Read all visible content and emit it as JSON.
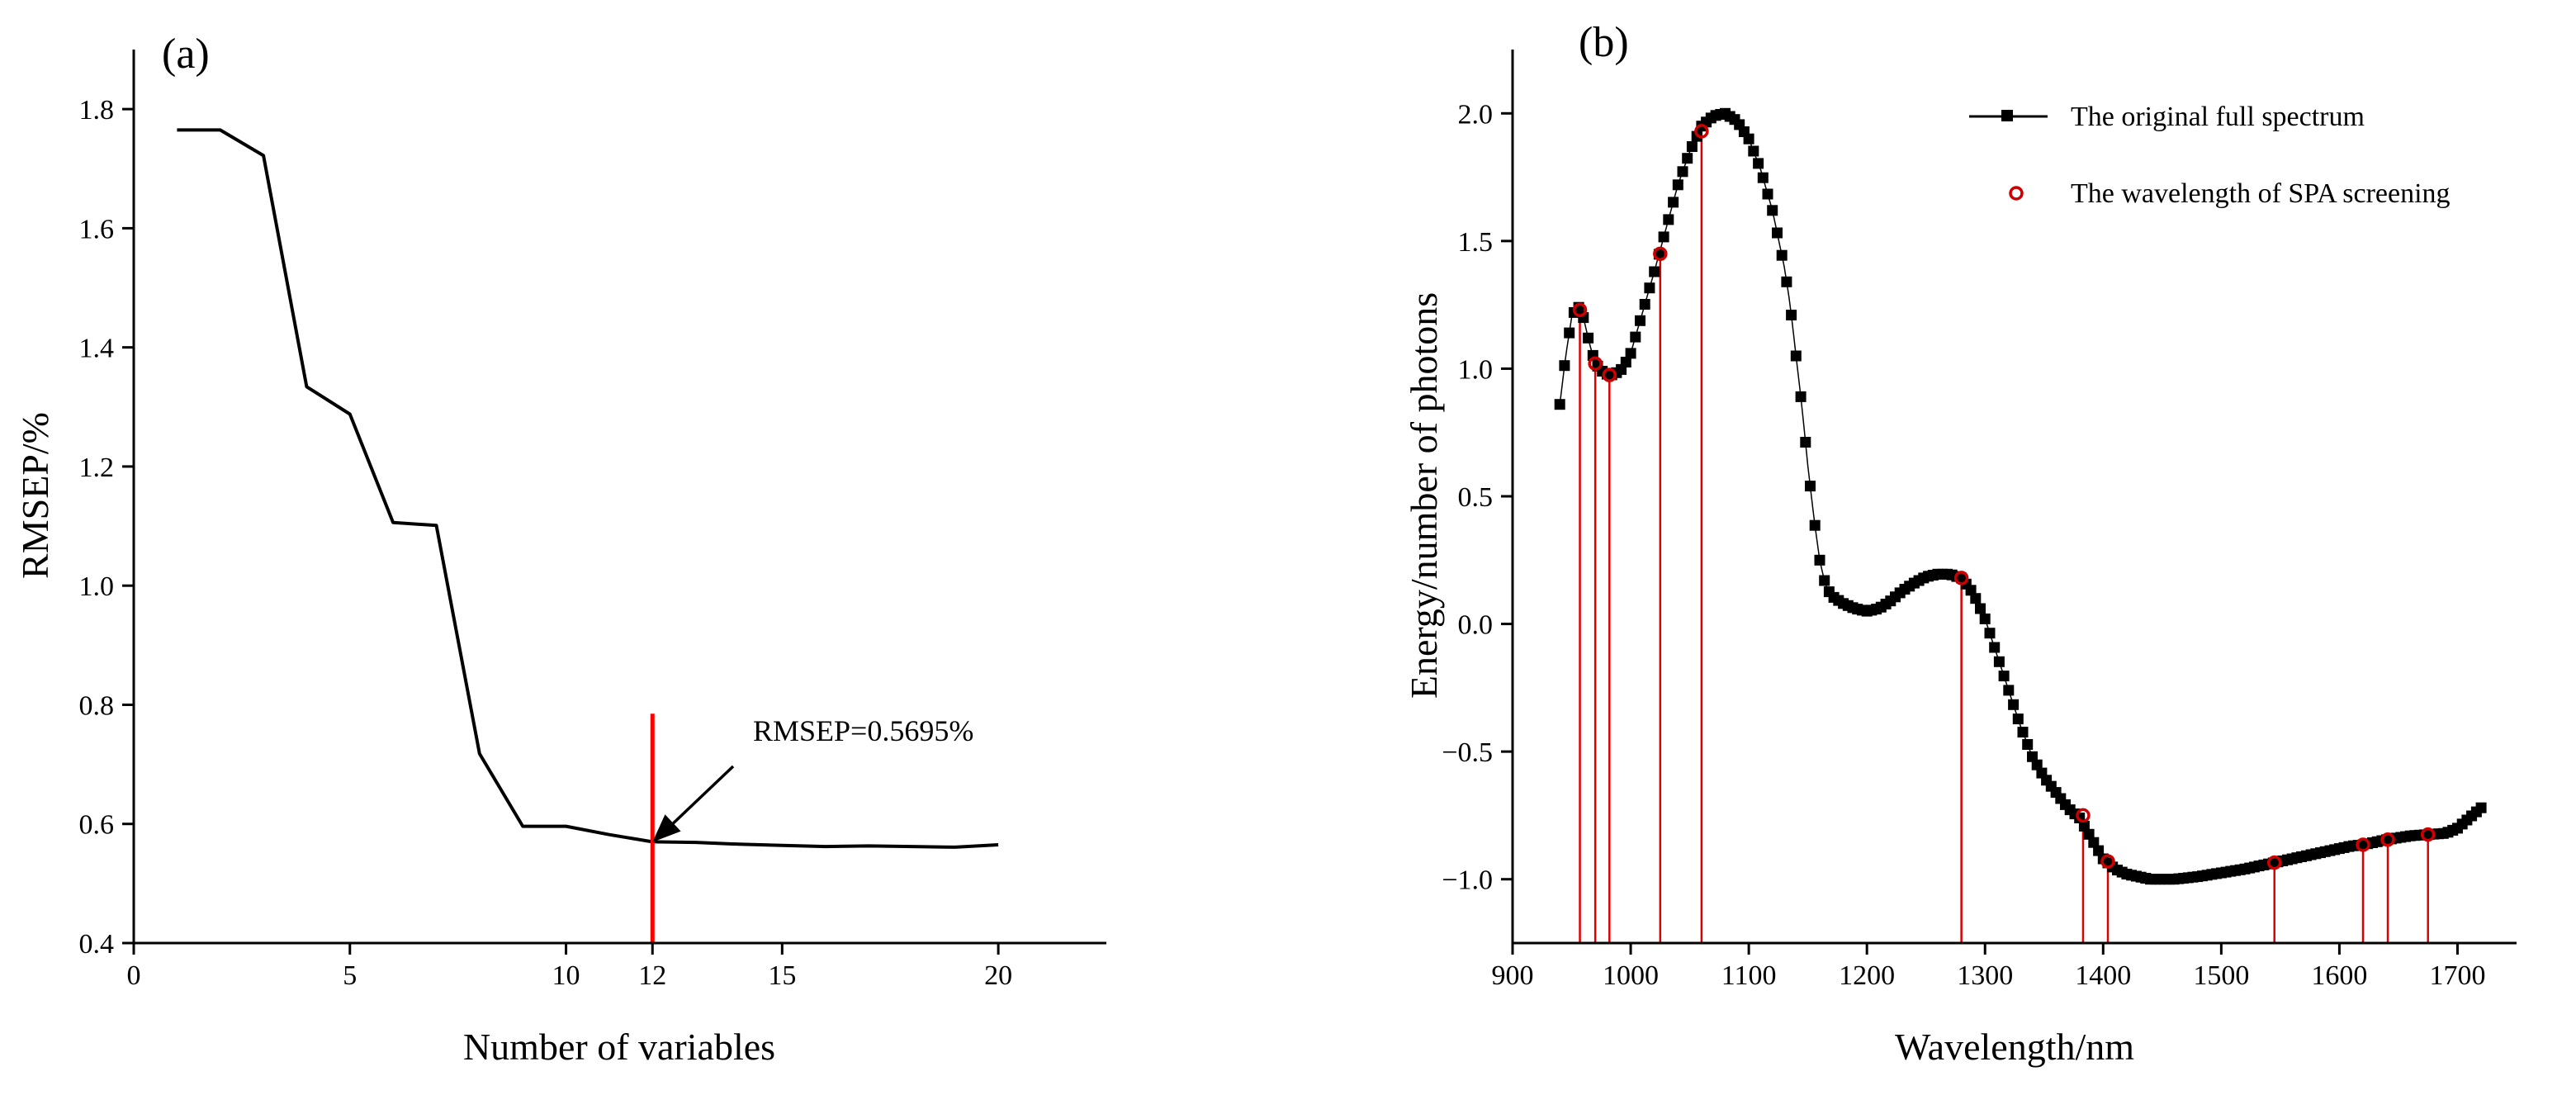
{
  "chart_data": [
    {
      "type": "line",
      "panel_label": "(a)",
      "xlabel": "Number of variables",
      "ylabel": "RMSEP/%",
      "xlim": [
        0,
        22.5
      ],
      "ylim": [
        0.4,
        1.9
      ],
      "xticks": [
        0,
        5,
        10,
        12,
        15,
        20
      ],
      "yticks": [
        0.4,
        0.6,
        0.8,
        1.0,
        1.2,
        1.4,
        1.6,
        1.8
      ],
      "ytick_labels": [
        "0.4",
        "0.6",
        "0.8",
        "1.0",
        "1.2",
        "1.4",
        "1.6",
        "1.8"
      ],
      "series": [
        {
          "name": "RMSEP",
          "color": "#000000",
          "x": [
            1,
            2,
            3,
            4,
            5,
            6,
            7,
            8,
            9,
            10,
            11,
            12,
            13,
            14,
            15,
            16,
            17,
            18,
            19,
            20
          ],
          "y": [
            1.765,
            1.765,
            1.722,
            1.334,
            1.288,
            1.106,
            1.101,
            0.718,
            0.596,
            0.596,
            0.582,
            0.57,
            0.569,
            0.566,
            0.564,
            0.562,
            0.563,
            0.562,
            0.561,
            0.565
          ]
        }
      ],
      "marker_line": {
        "x": 12,
        "y_top": 0.785,
        "color": "#ff0000"
      },
      "annotation": {
        "text": "RMSEP=0.5695%",
        "x": 12,
        "y": 0.5695
      }
    },
    {
      "type": "line",
      "panel_label": "(b)",
      "xlabel": "Wavelength/nm",
      "ylabel": "Energy/number of photons",
      "xlim": [
        900,
        1750
      ],
      "ylim": [
        -1.25,
        2.25
      ],
      "xticks": [
        900,
        1000,
        1100,
        1200,
        1300,
        1400,
        1500,
        1600,
        1700
      ],
      "yticks": [
        -1.0,
        -0.5,
        0.0,
        0.5,
        1.0,
        1.5,
        2.0
      ],
      "ytick_labels": [
        "−1.0",
        "−0.5",
        "0.0",
        "0.5",
        "1.0",
        "1.5",
        "2.0"
      ],
      "legend_position": "top-right",
      "spectrum_key_points": [
        [
          940,
          0.86
        ],
        [
          945,
          1.05
        ],
        [
          950,
          1.2
        ],
        [
          955,
          1.25
        ],
        [
          960,
          1.2
        ],
        [
          965,
          1.1
        ],
        [
          970,
          1.02
        ],
        [
          978,
          0.98
        ],
        [
          985,
          0.975
        ],
        [
          993,
          1.0
        ],
        [
          1000,
          1.06
        ],
        [
          1010,
          1.22
        ],
        [
          1020,
          1.38
        ],
        [
          1030,
          1.55
        ],
        [
          1040,
          1.72
        ],
        [
          1050,
          1.85
        ],
        [
          1060,
          1.95
        ],
        [
          1070,
          1.99
        ],
        [
          1080,
          2.0
        ],
        [
          1090,
          1.97
        ],
        [
          1100,
          1.9
        ],
        [
          1110,
          1.78
        ],
        [
          1120,
          1.62
        ],
        [
          1130,
          1.4
        ],
        [
          1135,
          1.25
        ],
        [
          1140,
          1.05
        ],
        [
          1145,
          0.85
        ],
        [
          1150,
          0.62
        ],
        [
          1155,
          0.42
        ],
        [
          1160,
          0.25
        ],
        [
          1165,
          0.15
        ],
        [
          1170,
          0.11
        ],
        [
          1180,
          0.08
        ],
        [
          1190,
          0.06
        ],
        [
          1200,
          0.05
        ],
        [
          1210,
          0.06
        ],
        [
          1220,
          0.09
        ],
        [
          1230,
          0.13
        ],
        [
          1240,
          0.16
        ],
        [
          1250,
          0.185
        ],
        [
          1260,
          0.195
        ],
        [
          1270,
          0.195
        ],
        [
          1280,
          0.18
        ],
        [
          1290,
          0.12
        ],
        [
          1300,
          0.02
        ],
        [
          1310,
          -0.12
        ],
        [
          1320,
          -0.26
        ],
        [
          1330,
          -0.4
        ],
        [
          1340,
          -0.52
        ],
        [
          1350,
          -0.6
        ],
        [
          1360,
          -0.66
        ],
        [
          1370,
          -0.72
        ],
        [
          1380,
          -0.76
        ],
        [
          1390,
          -0.84
        ],
        [
          1400,
          -0.92
        ],
        [
          1410,
          -0.96
        ],
        [
          1420,
          -0.98
        ],
        [
          1430,
          -0.99
        ],
        [
          1440,
          -1.0
        ],
        [
          1460,
          -1.0
        ],
        [
          1480,
          -0.99
        ],
        [
          1500,
          -0.975
        ],
        [
          1520,
          -0.96
        ],
        [
          1545,
          -0.935
        ],
        [
          1570,
          -0.91
        ],
        [
          1590,
          -0.89
        ],
        [
          1610,
          -0.87
        ],
        [
          1620,
          -0.865
        ],
        [
          1640,
          -0.845
        ],
        [
          1660,
          -0.83
        ],
        [
          1675,
          -0.825
        ],
        [
          1690,
          -0.82
        ],
        [
          1700,
          -0.8
        ],
        [
          1710,
          -0.76
        ],
        [
          1720,
          -0.72
        ]
      ],
      "spa_wavelengths": [
        [
          957,
          1.23
        ],
        [
          970,
          1.02
        ],
        [
          982,
          0.975
        ],
        [
          1025,
          1.45
        ],
        [
          1060,
          1.93
        ],
        [
          1280,
          0.18
        ],
        [
          1383,
          -0.75
        ],
        [
          1404,
          -0.93
        ],
        [
          1545,
          -0.935
        ],
        [
          1620,
          -0.865
        ],
        [
          1641,
          -0.845
        ],
        [
          1675,
          -0.825
        ]
      ],
      "legend": [
        {
          "label": "The original full spectrum",
          "color": "#000000",
          "marker": "square"
        },
        {
          "label": "The wavelength of SPA screening",
          "color": "#cc0000",
          "marker": "open-circle"
        }
      ]
    }
  ]
}
